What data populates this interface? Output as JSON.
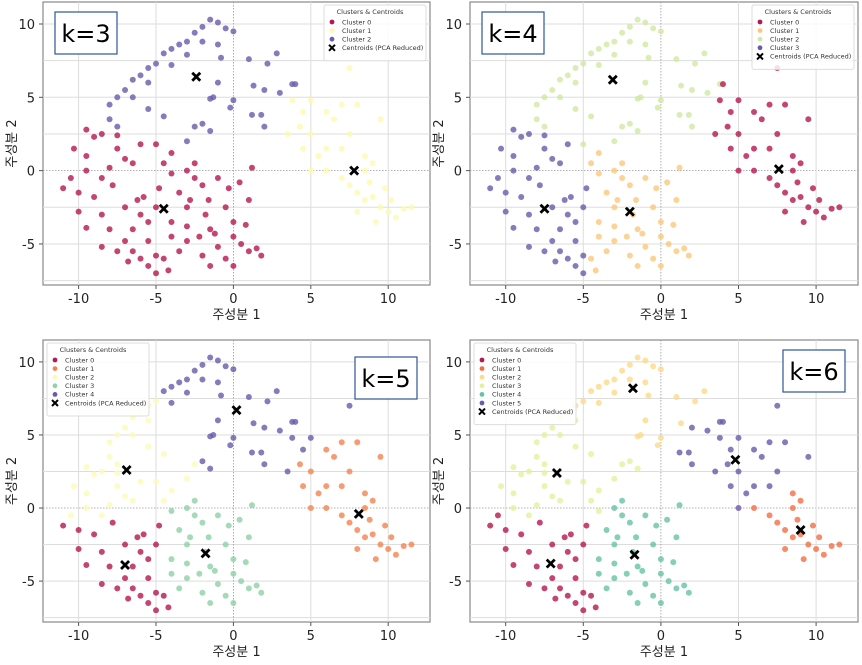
{
  "chart_data": {
    "type": "scatter",
    "xlabel": "주성분 1",
    "ylabel": "주성분 2",
    "xlim": [
      -12.3,
      12.7
    ],
    "ylim": [
      -7.8,
      11.5
    ],
    "xticks": [
      -10,
      -5,
      0,
      5,
      10
    ],
    "yticks": [
      -5,
      0,
      5,
      10
    ],
    "grid": true,
    "points": [
      [
        -8,
        4.5
      ],
      [
        -7.5,
        5
      ],
      [
        -7,
        5.5
      ],
      [
        -6.5,
        6.2
      ],
      [
        -6,
        6.5
      ],
      [
        -5.5,
        7
      ],
      [
        -5,
        7.3
      ],
      [
        -4.5,
        8
      ],
      [
        -4,
        8.3
      ],
      [
        -3.5,
        8.6
      ],
      [
        -3,
        8.8
      ],
      [
        -2.5,
        9.4
      ],
      [
        -2,
        9.8
      ],
      [
        -1.5,
        10.3
      ],
      [
        -1,
        10.1
      ],
      [
        -0.5,
        9.7
      ],
      [
        0,
        9.5
      ],
      [
        -1,
        8.6
      ],
      [
        -2,
        8.8
      ],
      [
        -3,
        7.9
      ],
      [
        -4,
        7.2
      ],
      [
        -5.5,
        6
      ],
      [
        -6.5,
        5
      ],
      [
        -8,
        3.5
      ],
      [
        -7.5,
        3
      ],
      [
        -1,
        6
      ],
      [
        -1.5,
        4.9
      ],
      [
        0,
        4.8
      ],
      [
        -0.2,
        4.3
      ],
      [
        1,
        7.6
      ],
      [
        2.2,
        7.3
      ],
      [
        2.8,
        8
      ],
      [
        1.3,
        5.8
      ],
      [
        2,
        5.5
      ],
      [
        3,
        5.3
      ],
      [
        3.8,
        5.9
      ],
      [
        1.2,
        3.8
      ],
      [
        1.8,
        3.8
      ],
      [
        2,
        3
      ],
      [
        -2.5,
        3
      ],
      [
        -2,
        3.2
      ],
      [
        -3,
        2
      ],
      [
        -1.5,
        2.7
      ],
      [
        -4.5,
        3.7
      ],
      [
        -5.5,
        4.2
      ],
      [
        -0.8,
        7.7
      ],
      [
        -1.3,
        5
      ],
      [
        4,
        5.9
      ],
      [
        3.8,
        4.8
      ],
      [
        4.5,
        4
      ],
      [
        5,
        4.8
      ],
      [
        6,
        4
      ],
      [
        6.5,
        3.5
      ],
      [
        7,
        4.5
      ],
      [
        8,
        4.5
      ],
      [
        9.5,
        3.5
      ],
      [
        3.5,
        2.5
      ],
      [
        4.3,
        3
      ],
      [
        5,
        2.5
      ],
      [
        6,
        1.5
      ],
      [
        5.5,
        1
      ],
      [
        7,
        1.5
      ],
      [
        7.5,
        2.5
      ],
      [
        8.5,
        1
      ],
      [
        9,
        0.5
      ],
      [
        6,
        0
      ],
      [
        7,
        -0.5
      ],
      [
        7.5,
        -1
      ],
      [
        8,
        -1.5
      ],
      [
        8.5,
        -2
      ],
      [
        9,
        -1.8
      ],
      [
        9.5,
        -2.5
      ],
      [
        10,
        -2.8
      ],
      [
        10.5,
        -3.2
      ],
      [
        11,
        -2.6
      ],
      [
        9.8,
        -1.2
      ],
      [
        8.8,
        -0.8
      ],
      [
        10.2,
        -2
      ],
      [
        11.5,
        -2.5
      ],
      [
        9.2,
        -3.5
      ],
      [
        7.5,
        7
      ],
      [
        8.5,
        0
      ],
      [
        5,
        0
      ],
      [
        4.5,
        1.5
      ],
      [
        8,
        -2.8
      ],
      [
        -11,
        -1.2
      ],
      [
        -10.5,
        -0.5
      ],
      [
        -10,
        -1.5
      ],
      [
        -10.3,
        1.5
      ],
      [
        -9.5,
        2.8
      ],
      [
        -9,
        2.3
      ],
      [
        -8.5,
        2.5
      ],
      [
        -7.5,
        2.4
      ],
      [
        -7.5,
        1.5
      ],
      [
        -7,
        0.8
      ],
      [
        -6.5,
        0.5
      ],
      [
        -9.5,
        0
      ],
      [
        -8.5,
        -0.5
      ],
      [
        -9,
        -1.8
      ],
      [
        -10,
        -2.8
      ],
      [
        -9.5,
        -3.9
      ],
      [
        -8.5,
        -3
      ],
      [
        -8,
        -4
      ],
      [
        -8.5,
        -5.2
      ],
      [
        -7.5,
        -5.5
      ],
      [
        -7,
        -4.8
      ],
      [
        -6.5,
        -5.5
      ],
      [
        -6,
        -6
      ],
      [
        -5.5,
        -6.5
      ],
      [
        -5,
        -5.8
      ],
      [
        -4.5,
        -6
      ],
      [
        -4.2,
        -6.8
      ],
      [
        -5,
        -7
      ],
      [
        -6.5,
        -4
      ],
      [
        -6,
        -3
      ],
      [
        -5.8,
        -1.8
      ],
      [
        -6.2,
        -2
      ],
      [
        -5.5,
        -3.5
      ],
      [
        -5,
        -2.5
      ],
      [
        -4.8,
        -1.2
      ],
      [
        -4.5,
        0.5
      ],
      [
        -4,
        -0.2
      ],
      [
        -3.5,
        -1.5
      ],
      [
        -3,
        -2.5
      ],
      [
        -3,
        -3.8
      ],
      [
        -2.5,
        -0.5
      ],
      [
        -2.5,
        0.5
      ],
      [
        -2,
        -1
      ],
      [
        -2.2,
        -4.5
      ],
      [
        -1.8,
        -3
      ],
      [
        -1.5,
        -4
      ],
      [
        -1.2,
        -4.3
      ],
      [
        -1,
        -5.2
      ],
      [
        -0.5,
        -2.5
      ],
      [
        0,
        -3.5
      ],
      [
        0,
        -4.5
      ],
      [
        -0.5,
        -6
      ],
      [
        0,
        -6.5
      ],
      [
        0.5,
        -5
      ],
      [
        0.8,
        -3.7
      ],
      [
        1,
        -5.5
      ],
      [
        1.5,
        -5.3
      ],
      [
        1.8,
        -5.8
      ],
      [
        1,
        -2
      ],
      [
        0.4,
        -0.8
      ],
      [
        1.2,
        0.2
      ],
      [
        -3.5,
        -5.5
      ],
      [
        -2,
        -5.8
      ],
      [
        -3,
        -4.8
      ],
      [
        -4,
        -3.5
      ],
      [
        -7,
        -2.5
      ],
      [
        -7.8,
        -1
      ],
      [
        -8,
        0.2
      ],
      [
        -9.5,
        1
      ],
      [
        -6,
        1.8
      ],
      [
        -5,
        1.8
      ],
      [
        -4,
        1.2
      ],
      [
        -3,
        0
      ],
      [
        -1,
        -0.5
      ],
      [
        -0.3,
        -1.2
      ],
      [
        -5.5,
        -4.8
      ],
      [
        -6.8,
        -6.2
      ],
      [
        -1.5,
        -6.5
      ],
      [
        -4,
        -4.5
      ],
      [
        -2.8,
        -2
      ],
      [
        -1.6,
        -2
      ]
    ],
    "panels": [
      {
        "k_label": "k=3",
        "legend_title": "Clusters & Centroids",
        "legend_placement": "top-right",
        "centroid_label": "Centroids (PCA Reduced)",
        "clusters": [
          {
            "name": "Cluster 0",
            "color": "#b5174f",
            "centroid": [
              -4.5,
              -2.6
            ]
          },
          {
            "name": "Cluster 1",
            "color": "#fbfbb0",
            "centroid": [
              7.8,
              0.0
            ]
          },
          {
            "name": "Cluster 2",
            "color": "#6a5aab",
            "centroid": [
              -2.4,
              6.4
            ]
          }
        ]
      },
      {
        "k_label": "k=4",
        "legend_title": "Clusters & Centroids",
        "legend_placement": "top-right",
        "centroid_label": "Centroids (PCA Reduced)",
        "clusters": [
          {
            "name": "Cluster 0",
            "color": "#b5174f",
            "centroid": [
              7.6,
              0.1
            ]
          },
          {
            "name": "Cluster 1",
            "color": "#fdc77a",
            "centroid": [
              -2.0,
              -2.8
            ]
          },
          {
            "name": "Cluster 2",
            "color": "#cfe9a3",
            "centroid": [
              -3.1,
              6.2
            ]
          },
          {
            "name": "Cluster 3",
            "color": "#6a5aab",
            "centroid": [
              -7.5,
              -2.6
            ]
          }
        ]
      },
      {
        "k_label": "k=5",
        "legend_title": "Clusters & Centroids",
        "legend_placement": "top-left",
        "centroid_label": "Centroids (PCA Reduced)",
        "clusters": [
          {
            "name": "Cluster 0",
            "color": "#b5174f",
            "centroid": [
              -7.0,
              -3.9
            ]
          },
          {
            "name": "Cluster 1",
            "color": "#f5834f",
            "centroid": [
              8.1,
              -0.4
            ]
          },
          {
            "name": "Cluster 2",
            "color": "#fbfbb8",
            "centroid": [
              -6.9,
              2.6
            ]
          },
          {
            "name": "Cluster 3",
            "color": "#8fd1a8",
            "centroid": [
              -1.8,
              -3.1
            ]
          },
          {
            "name": "Cluster 4",
            "color": "#6a5aab",
            "centroid": [
              0.2,
              6.7
            ]
          }
        ]
      },
      {
        "k_label": "k=6",
        "legend_title": "Clusters & Centroids",
        "legend_placement": "top-left",
        "centroid_label": "Centroids (PCA Reduced)",
        "clusters": [
          {
            "name": "Cluster 0",
            "color": "#b5174f",
            "centroid": [
              -7.1,
              -3.8
            ]
          },
          {
            "name": "Cluster 1",
            "color": "#f46d43",
            "centroid": [
              9.0,
              -1.5
            ]
          },
          {
            "name": "Cluster 2",
            "color": "#fdd98a",
            "centroid": [
              -1.8,
              8.2
            ]
          },
          {
            "name": "Cluster 3",
            "color": "#e3f19c",
            "centroid": [
              -6.7,
              2.4
            ]
          },
          {
            "name": "Cluster 4",
            "color": "#66c2a5",
            "centroid": [
              -1.7,
              -3.2
            ]
          },
          {
            "name": "Cluster 5",
            "color": "#6a5aab",
            "centroid": [
              4.8,
              3.3
            ]
          }
        ]
      }
    ]
  }
}
